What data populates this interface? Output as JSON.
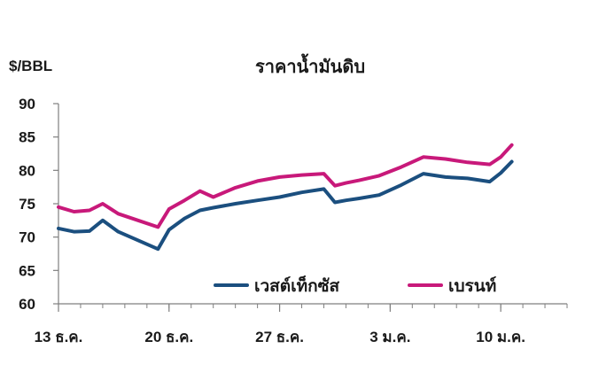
{
  "chart_data": {
    "type": "line",
    "title": "ราคาน้ำมันดิบ",
    "ylabel": "$/BBL",
    "xlabel": "",
    "ylim": [
      60,
      90
    ],
    "yticks": [
      60,
      65,
      70,
      75,
      80,
      85,
      90
    ],
    "xlim": [
      0,
      23
    ],
    "xtick_labels": [
      {
        "x": 0,
        "label": "13 ธ.ค."
      },
      {
        "x": 5,
        "label": "20 ธ.ค."
      },
      {
        "x": 10,
        "label": "27 ธ.ค."
      },
      {
        "x": 15,
        "label": "3 ม.ค."
      },
      {
        "x": 20,
        "label": "10 ม.ค."
      }
    ],
    "x": [
      0,
      0.7,
      1.4,
      2.0,
      2.7,
      4.5,
      5.0,
      5.7,
      6.4,
      7.0,
      8.0,
      9.0,
      10.0,
      11.0,
      12.0,
      12.5,
      13.0,
      13.6,
      14.5,
      15.5,
      16.5,
      17.5,
      18.5,
      19.5,
      20.0,
      20.5
    ],
    "series": [
      {
        "name": "เวสต์เท็กซัส",
        "color": "#1b4f7f",
        "values": [
          71.3,
          70.8,
          70.9,
          72.5,
          70.8,
          68.2,
          71.1,
          72.8,
          74.0,
          74.4,
          75.0,
          75.5,
          76.0,
          76.7,
          77.2,
          75.2,
          75.5,
          75.8,
          76.3,
          77.8,
          79.5,
          79.0,
          78.8,
          78.3,
          79.6,
          81.3
        ]
      },
      {
        "name": "เบรนท์",
        "color": "#c8197a",
        "values": [
          74.5,
          73.8,
          74.0,
          75.0,
          73.5,
          71.5,
          74.2,
          75.5,
          76.9,
          76.0,
          77.4,
          78.4,
          79.0,
          79.3,
          79.5,
          77.7,
          78.1,
          78.5,
          79.2,
          80.5,
          82.0,
          81.7,
          81.2,
          80.9,
          82.0,
          83.8
        ]
      }
    ],
    "legend_position": "inside-bottom",
    "grid": false
  }
}
